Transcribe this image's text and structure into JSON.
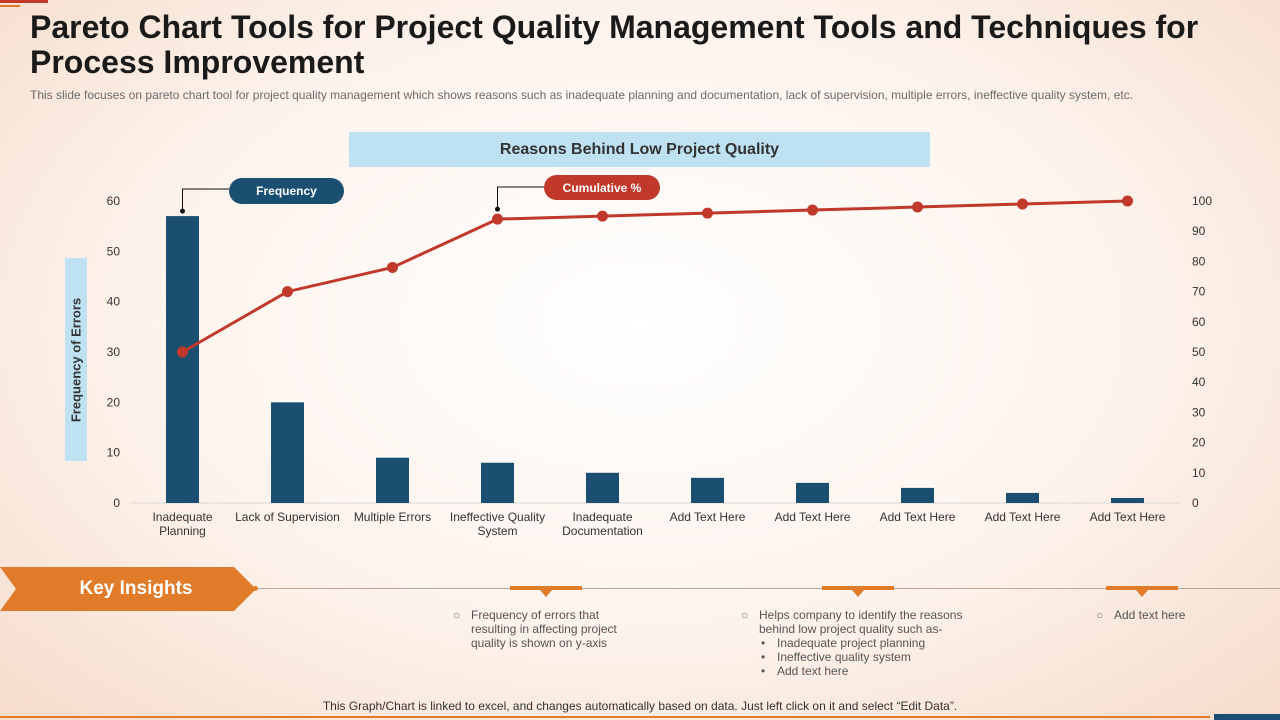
{
  "slide": {
    "title": "Pareto Chart Tools for Project Quality Management Tools and Techniques for Process Improvement",
    "subtitle": "This slide focuses on pareto chart tool for project quality management which shows reasons such as inadequate planning and documentation, lack of supervision, multiple errors, ineffective quality system, etc.",
    "footer": "This Graph/Chart is linked to excel, and changes automatically based on data. Just left click on it and select “Edit Data”."
  },
  "legend": {
    "frequency_label": "Frequency",
    "cumulative_label": "Cumulative %"
  },
  "chart_data": {
    "type": "bar",
    "title": "Reasons Behind Low Project Quality",
    "ylabel": "Frequency of Errors",
    "xlabel": "",
    "categories": [
      [
        "Inadequate",
        "Planning"
      ],
      [
        "Lack of Supervision"
      ],
      [
        "Multiple Errors"
      ],
      [
        "Ineffective Quality",
        "System"
      ],
      [
        "Inadequate",
        "Documentation"
      ],
      [
        "Add Text Here"
      ],
      [
        "Add Text Here"
      ],
      [
        "Add Text Here"
      ],
      [
        "Add Text Here"
      ],
      [
        "Add Text Here"
      ]
    ],
    "series": [
      {
        "name": "Frequency",
        "type": "bar",
        "axis": "left",
        "color": "#1b4f72",
        "values": [
          57,
          20,
          9,
          8,
          6,
          5,
          4,
          3,
          2,
          1
        ]
      },
      {
        "name": "Cumulative %",
        "type": "line",
        "axis": "right",
        "color": "#c0392b",
        "values": [
          50,
          70,
          78,
          94,
          95,
          96,
          97,
          98,
          99,
          100
        ]
      }
    ],
    "ylim_left": [
      0,
      60
    ],
    "yticks_left": [
      0,
      10,
      20,
      30,
      40,
      50,
      60
    ],
    "ylim_right": [
      0,
      100
    ],
    "yticks_right": [
      0,
      10,
      20,
      30,
      40,
      50,
      60,
      70,
      80,
      90,
      100
    ],
    "grid": false
  },
  "key_insights": {
    "label": "Key Insights",
    "items": [
      {
        "text": "Frequency of errors that resulting in affecting project quality is shown on y-axis",
        "bullets": []
      },
      {
        "text": "Helps company to identify the reasons behind low project quality such as-",
        "bullets": [
          "Inadequate project planning",
          "Ineffective quality system",
          "Add text here"
        ]
      },
      {
        "text": "Add text here",
        "bullets": []
      }
    ]
  }
}
